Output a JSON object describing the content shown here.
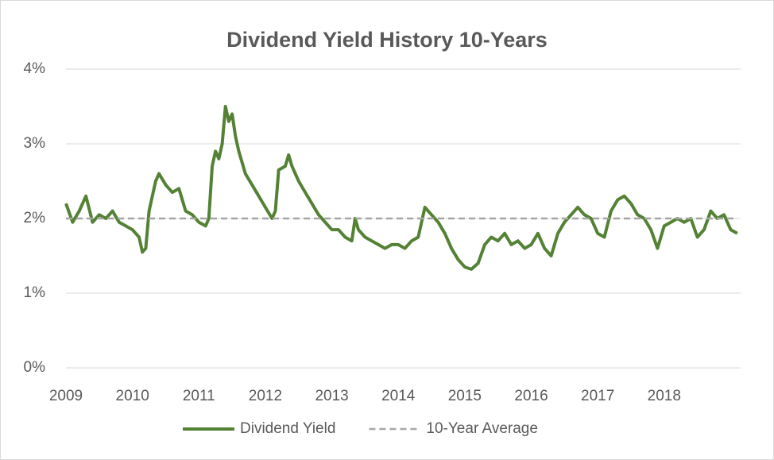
{
  "chart_data": {
    "type": "line",
    "title": "Dividend Yield History 10-Years",
    "xlim": [
      2009,
      2019.15
    ],
    "xticks": [
      2009,
      2010,
      2011,
      2012,
      2013,
      2014,
      2015,
      2016,
      2017,
      2018
    ],
    "ylim": [
      0,
      4
    ],
    "yticks": [
      {
        "value": 0,
        "label": "0%"
      },
      {
        "value": 1,
        "label": "1%"
      },
      {
        "value": 2,
        "label": "2%"
      },
      {
        "value": 3,
        "label": "3%"
      },
      {
        "value": 4,
        "label": "4%"
      }
    ],
    "grid": true,
    "legend": "bottom",
    "series": [
      {
        "name": "Dividend Yield",
        "color": "#548235",
        "dashed": false,
        "x": [
          2009.0,
          2009.1,
          2009.2,
          2009.3,
          2009.4,
          2009.5,
          2009.6,
          2009.7,
          2009.8,
          2009.9,
          2010.0,
          2010.1,
          2010.15,
          2010.2,
          2010.25,
          2010.3,
          2010.35,
          2010.4,
          2010.5,
          2010.6,
          2010.7,
          2010.8,
          2010.9,
          2011.0,
          2011.1,
          2011.15,
          2011.2,
          2011.25,
          2011.3,
          2011.35,
          2011.4,
          2011.45,
          2011.5,
          2011.55,
          2011.6,
          2011.7,
          2011.8,
          2011.9,
          2012.0,
          2012.1,
          2012.15,
          2012.2,
          2012.3,
          2012.35,
          2012.4,
          2012.5,
          2012.6,
          2012.7,
          2012.8,
          2012.9,
          2013.0,
          2013.1,
          2013.2,
          2013.3,
          2013.35,
          2013.4,
          2013.5,
          2013.6,
          2013.7,
          2013.8,
          2013.9,
          2014.0,
          2014.1,
          2014.2,
          2014.3,
          2014.4,
          2014.5,
          2014.6,
          2014.7,
          2014.8,
          2014.9,
          2015.0,
          2015.1,
          2015.2,
          2015.3,
          2015.4,
          2015.5,
          2015.6,
          2015.7,
          2015.8,
          2015.9,
          2016.0,
          2016.1,
          2016.2,
          2016.3,
          2016.4,
          2016.5,
          2016.6,
          2016.7,
          2016.8,
          2016.9,
          2017.0,
          2017.1,
          2017.2,
          2017.3,
          2017.4,
          2017.5,
          2017.6,
          2017.7,
          2017.8,
          2017.9,
          2018.0,
          2018.1,
          2018.2,
          2018.3,
          2018.4,
          2018.5,
          2018.6,
          2018.7,
          2018.8,
          2018.9,
          2019.0,
          2019.1
        ],
        "values": [
          2.2,
          1.95,
          2.1,
          2.3,
          1.95,
          2.05,
          2.0,
          2.1,
          1.95,
          1.9,
          1.85,
          1.75,
          1.55,
          1.6,
          2.1,
          2.3,
          2.5,
          2.6,
          2.45,
          2.35,
          2.4,
          2.1,
          2.05,
          1.95,
          1.9,
          2.0,
          2.7,
          2.9,
          2.8,
          3.0,
          3.5,
          3.3,
          3.4,
          3.1,
          2.9,
          2.6,
          2.45,
          2.3,
          2.15,
          2.0,
          2.1,
          2.65,
          2.7,
          2.85,
          2.7,
          2.5,
          2.35,
          2.2,
          2.05,
          1.95,
          1.85,
          1.85,
          1.75,
          1.7,
          2.0,
          1.85,
          1.75,
          1.7,
          1.65,
          1.6,
          1.65,
          1.65,
          1.6,
          1.7,
          1.75,
          2.15,
          2.05,
          1.95,
          1.8,
          1.6,
          1.45,
          1.35,
          1.32,
          1.4,
          1.65,
          1.75,
          1.7,
          1.8,
          1.65,
          1.7,
          1.6,
          1.65,
          1.8,
          1.6,
          1.5,
          1.8,
          1.95,
          2.05,
          2.15,
          2.05,
          2.0,
          1.8,
          1.75,
          2.1,
          2.25,
          2.3,
          2.2,
          2.05,
          2.0,
          1.85,
          1.6,
          1.9,
          1.95,
          2.0,
          1.95,
          2.0,
          1.75,
          1.85,
          2.1,
          2.0,
          2.05,
          1.85,
          1.8
        ]
      },
      {
        "name": "10-Year Average",
        "color": "#a6a6a6",
        "dashed": true,
        "x": [
          2009.0,
          2019.1
        ],
        "values": [
          2,
          2
        ]
      }
    ]
  }
}
